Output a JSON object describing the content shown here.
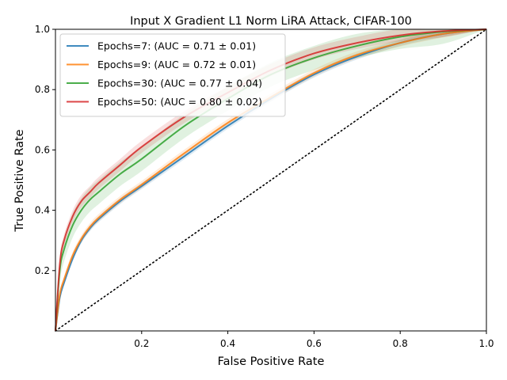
{
  "chart_data": {
    "type": "line",
    "title": "Input X Gradient L1 Norm LiRA Attack, CIFAR-100",
    "xlabel": "False Positive Rate",
    "ylabel": "True Positive Rate",
    "xlim": [
      0.0,
      1.0
    ],
    "ylim": [
      0.0,
      1.0
    ],
    "xticks": [
      0.2,
      0.4,
      0.6,
      0.8,
      1.0
    ],
    "yticks": [
      0.2,
      0.4,
      0.6,
      0.8,
      1.0
    ],
    "xtick_labels": [
      "0.2",
      "0.4",
      "0.6",
      "0.8",
      "1.0"
    ],
    "ytick_labels": [
      "0.2",
      "0.4",
      "0.6",
      "0.8",
      "1.0"
    ],
    "grid": false,
    "legend_position": "top-left",
    "diagonal": {
      "style": "dotted",
      "color": "#000000",
      "points": [
        [
          0,
          0
        ],
        [
          1,
          1
        ]
      ]
    },
    "series": [
      {
        "name": "Epochs=7: (AUC = 0.71 ± 0.01)",
        "color": "#1f77b4",
        "x": [
          0,
          0.01,
          0.02,
          0.04,
          0.06,
          0.08,
          0.1,
          0.15,
          0.2,
          0.3,
          0.4,
          0.5,
          0.6,
          0.7,
          0.8,
          0.9,
          1.0
        ],
        "y": [
          0,
          0.11,
          0.16,
          0.24,
          0.3,
          0.34,
          0.37,
          0.43,
          0.48,
          0.58,
          0.68,
          0.77,
          0.85,
          0.91,
          0.955,
          0.985,
          1.0
        ],
        "band": 0.01
      },
      {
        "name": "Epochs=9: (AUC = 0.72 ± 0.01)",
        "color": "#ff7f0e",
        "x": [
          0,
          0.01,
          0.02,
          0.04,
          0.06,
          0.08,
          0.1,
          0.15,
          0.2,
          0.3,
          0.4,
          0.5,
          0.6,
          0.7,
          0.8,
          0.9,
          1.0
        ],
        "y": [
          0,
          0.12,
          0.17,
          0.25,
          0.305,
          0.345,
          0.375,
          0.435,
          0.485,
          0.59,
          0.69,
          0.775,
          0.855,
          0.915,
          0.955,
          0.985,
          1.0
        ],
        "band": 0.012
      },
      {
        "name": "Epochs=30: (AUC = 0.77 ± 0.04)",
        "color": "#2ca02c",
        "x": [
          0,
          0.01,
          0.02,
          0.04,
          0.06,
          0.08,
          0.1,
          0.15,
          0.2,
          0.3,
          0.4,
          0.5,
          0.6,
          0.7,
          0.8,
          0.9,
          1.0
        ],
        "y": [
          0,
          0.2,
          0.27,
          0.35,
          0.4,
          0.435,
          0.46,
          0.52,
          0.57,
          0.68,
          0.77,
          0.85,
          0.905,
          0.945,
          0.975,
          0.992,
          1.0
        ],
        "band": 0.04
      },
      {
        "name": "Epochs=50: (AUC = 0.80 ± 0.02)",
        "color": "#d62728",
        "x": [
          0,
          0.01,
          0.02,
          0.04,
          0.06,
          0.08,
          0.1,
          0.15,
          0.2,
          0.3,
          0.4,
          0.5,
          0.6,
          0.7,
          0.8,
          0.9,
          1.0
        ],
        "y": [
          0,
          0.22,
          0.3,
          0.38,
          0.43,
          0.46,
          0.49,
          0.55,
          0.61,
          0.71,
          0.79,
          0.865,
          0.92,
          0.955,
          0.98,
          0.994,
          1.0
        ],
        "band": 0.02
      }
    ]
  }
}
